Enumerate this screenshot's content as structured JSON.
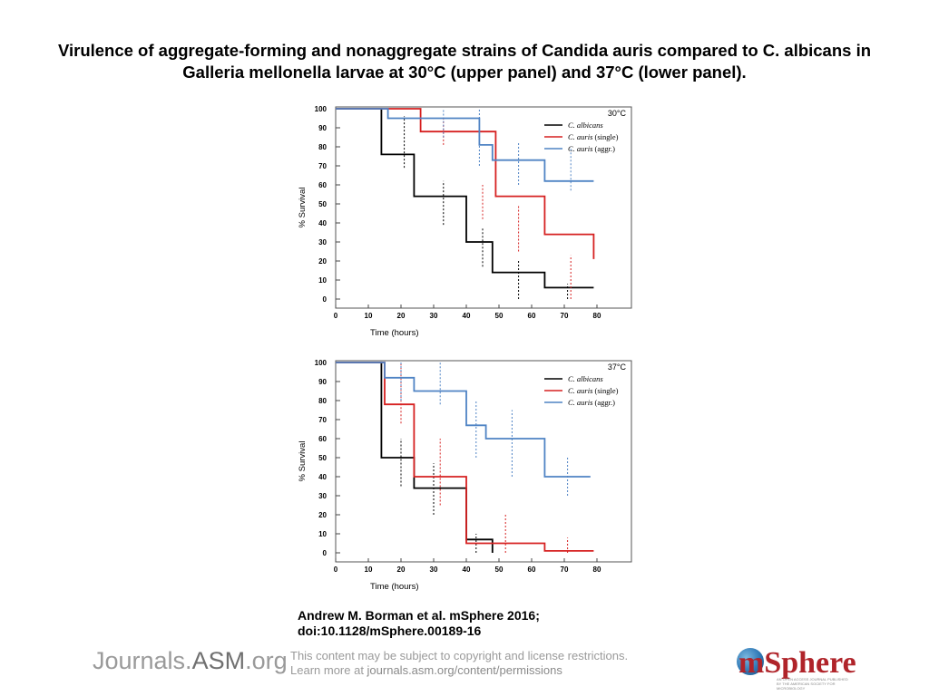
{
  "page": {
    "title": "Virulence of aggregate-forming and nonaggregate strains of Candida auris compared to C. albicans in Galleria mellonella larvae at 30°C (upper panel) and 37°C (lower panel).",
    "citation_line1": "Andrew M. Borman et al. mSphere 2016;",
    "citation_line2": "doi:10.1128/mSphere.00189-16"
  },
  "footer": {
    "journals_logo_prefix": "Journals.",
    "journals_logo_asm": "ASM",
    "journals_logo_suffix": ".org",
    "rights_line1": "This content may be subject to copyright and license restrictions.",
    "rights_line2_prefix": "Learn more at ",
    "rights_line2_link": "journals.asm.org/content/permissions",
    "msphere_logo_text": "mSphere",
    "msphere_tagline": "AN OPEN ACCESS JOURNAL PUBLISHED BY THE AMERICAN SOCIETY FOR MICROBIOLOGY"
  },
  "colors": {
    "c_albicans": "#000000",
    "c_auris_single": "#d62020",
    "c_auris_aggr": "#4f83c4"
  },
  "chart_data": [
    {
      "type": "line",
      "step": true,
      "panel_label": "30°C",
      "xlabel": "Time (hours)",
      "ylabel": "% Survival",
      "xlim": [
        0,
        80
      ],
      "ylim": [
        0,
        100
      ],
      "xticks": [
        0,
        10,
        20,
        30,
        40,
        50,
        60,
        70,
        80
      ],
      "yticks": [
        0,
        10,
        20,
        30,
        40,
        50,
        60,
        70,
        80,
        90,
        100
      ],
      "legend_position": "top-right",
      "series": [
        {
          "name": "C. albicans",
          "name_italic": "C. albicans",
          "name_suffix": "",
          "color": "#000000",
          "x": [
            0,
            14,
            24,
            40,
            48,
            64,
            79
          ],
          "y": [
            100,
            76,
            54,
            30,
            14,
            6,
            6
          ],
          "errors": [
            [
              21,
              69,
              96
            ],
            [
              33,
              39,
              62
            ],
            [
              45,
              17,
              37
            ],
            [
              56,
              0,
              20
            ],
            [
              71,
              0,
              8
            ]
          ]
        },
        {
          "name": "C. auris (single)",
          "name_italic": "C. auris",
          "name_suffix": " (single)",
          "color": "#d62020",
          "x": [
            0,
            16,
            26,
            40,
            49,
            64,
            79
          ],
          "y": [
            100,
            100,
            88,
            88,
            54,
            34,
            21
          ],
          "errors": [
            [
              33,
              81,
              96
            ],
            [
              45,
              42,
              60
            ],
            [
              56,
              25,
              49
            ],
            [
              72,
              0,
              23
            ]
          ]
        },
        {
          "name": "C. auris (aggr.)",
          "name_italic": "C. auris",
          "name_suffix": " (aggr.)",
          "color": "#4f83c4",
          "x": [
            0,
            16,
            40,
            44,
            48,
            64,
            79
          ],
          "y": [
            100,
            95,
            95,
            81,
            73,
            62,
            62
          ],
          "errors": [
            [
              33,
              85,
              100
            ],
            [
              44,
              70,
              100
            ],
            [
              56,
              60,
              82
            ],
            [
              72,
              57,
              80
            ]
          ]
        }
      ]
    },
    {
      "type": "line",
      "step": true,
      "panel_label": "37°C",
      "xlabel": "Time (hours)",
      "ylabel": "% Survival",
      "xlim": [
        0,
        80
      ],
      "ylim": [
        0,
        100
      ],
      "xticks": [
        0,
        10,
        20,
        30,
        40,
        50,
        60,
        70,
        80
      ],
      "yticks": [
        0,
        10,
        20,
        30,
        40,
        50,
        60,
        70,
        80,
        90,
        100
      ],
      "legend_position": "top-right",
      "series": [
        {
          "name": "C. albicans",
          "name_italic": "C. albicans",
          "name_suffix": "",
          "color": "#000000",
          "x": [
            0,
            14,
            24,
            40,
            48
          ],
          "y": [
            100,
            50,
            34,
            7,
            0
          ],
          "errors": [
            [
              20,
              35,
              60
            ],
            [
              30,
              20,
              47
            ],
            [
              43,
              0,
              10
            ]
          ]
        },
        {
          "name": "C. auris (single)",
          "name_italic": "C. auris",
          "name_suffix": " (single)",
          "color": "#d62020",
          "x": [
            0,
            15,
            24,
            40,
            64,
            79
          ],
          "y": [
            100,
            78,
            40,
            5,
            1,
            1
          ],
          "errors": [
            [
              20,
              68,
              100
            ],
            [
              32,
              25,
              60
            ],
            [
              52,
              0,
              20
            ],
            [
              71,
              0,
              8
            ]
          ]
        },
        {
          "name": "C. auris (aggr.)",
          "name_italic": "C. auris",
          "name_suffix": " (aggr.)",
          "color": "#4f83c4",
          "x": [
            0,
            15,
            24,
            40,
            46,
            64,
            78
          ],
          "y": [
            100,
            92,
            85,
            67,
            60,
            40,
            40
          ],
          "errors": [
            [
              20,
              80,
              100
            ],
            [
              32,
              78,
              100
            ],
            [
              43,
              50,
              80
            ],
            [
              54,
              40,
              75
            ],
            [
              71,
              30,
              50
            ]
          ]
        }
      ]
    }
  ]
}
